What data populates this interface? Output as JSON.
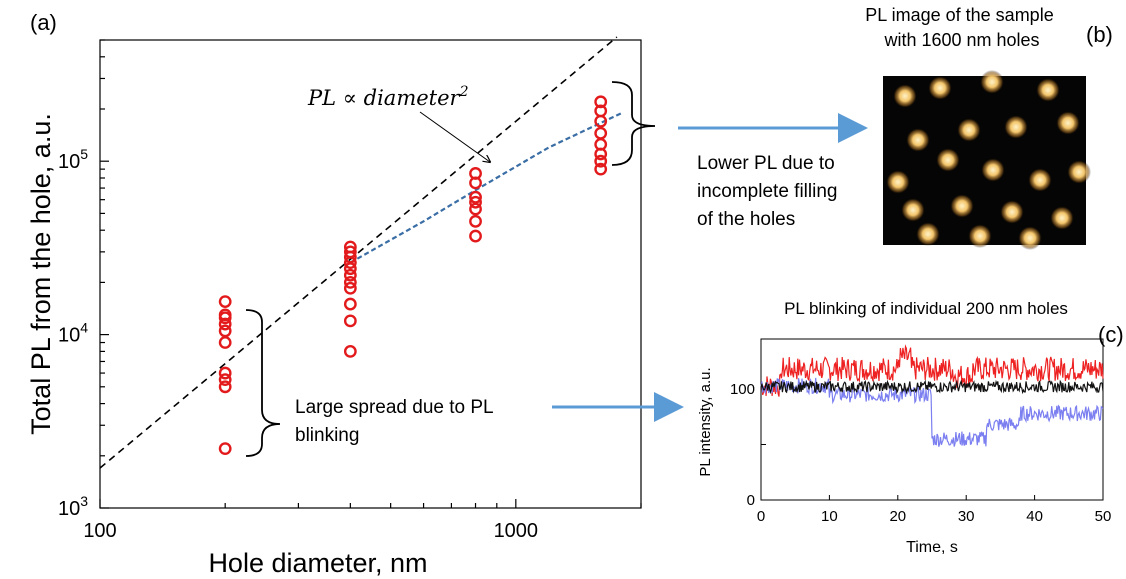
{
  "panel_labels": {
    "a": "(a)",
    "b": "(b)",
    "c": "(c)"
  },
  "colors": {
    "markers": "#e31a1c",
    "fit_line": "#3a6ea5",
    "arrow": "#5b9bd5",
    "red_trace": "#ee2222",
    "black_trace": "#111111",
    "blue_trace": "#7b7ff0"
  },
  "annotations": {
    "pl_law_prefix": "PL ∝ diameter",
    "pl_law_exp": "2",
    "lower_pl": [
      "Lower PL due to",
      "incomplete filling",
      "of the holes"
    ],
    "large_spread": [
      "Large spread due to PL",
      "blinking"
    ],
    "pl_image_title": [
      "PL image of the sample",
      "with 1600 nm holes"
    ],
    "blinking_title": "PL blinking of individual 200 nm holes"
  },
  "chart_data": [
    {
      "type": "scatter",
      "xlabel": "Hole diameter, nm",
      "ylabel": "Total PL from the hole, a.u.",
      "xscale": "log",
      "yscale": "log",
      "xlim": [
        100,
        2000
      ],
      "ylim": [
        1000,
        500000
      ],
      "xticks": [
        {
          "v": 100,
          "label": "100"
        },
        {
          "v": 1000,
          "label": "1000"
        }
      ],
      "yticks": [
        {
          "v": 1000,
          "base": "10",
          "exp": "3"
        },
        {
          "v": 10000,
          "base": "10",
          "exp": "4"
        },
        {
          "v": 100000,
          "base": "10",
          "exp": "5"
        }
      ],
      "series": [
        {
          "x": 200,
          "y": [
            15500,
            13000,
            12500,
            11500,
            10500,
            9000,
            6000,
            5500,
            5000,
            2200
          ]
        },
        {
          "x": 400,
          "y": [
            32000,
            30000,
            28000,
            26000,
            24000,
            22000,
            20000,
            18500,
            15000,
            12000,
            8000
          ]
        },
        {
          "x": 800,
          "y": [
            85000,
            75000,
            62000,
            58000,
            53000,
            45000,
            37000
          ]
        },
        {
          "x": 1600,
          "y": [
            220000,
            195000,
            170000,
            145000,
            125000,
            110000,
            100000,
            90000
          ]
        }
      ],
      "trend_dashed": {
        "x": [
          100,
          1750
        ],
        "y": [
          1700,
          520000
        ]
      },
      "trend_fit": {
        "x": [
          400,
          600,
          800,
          1200,
          1800
        ],
        "y": [
          26000,
          45000,
          68000,
          120000,
          190000
        ]
      }
    },
    {
      "type": "line",
      "xlabel": "Time, s",
      "ylabel": "PL intensity, a.u.",
      "xlim": [
        0,
        50
      ],
      "ylim": [
        0,
        145
      ],
      "xticks": [
        0,
        10,
        20,
        30,
        40,
        50
      ],
      "yticks": [
        0,
        50,
        100
      ],
      "ytick_labels": [
        "0",
        "",
        "100"
      ]
    }
  ]
}
